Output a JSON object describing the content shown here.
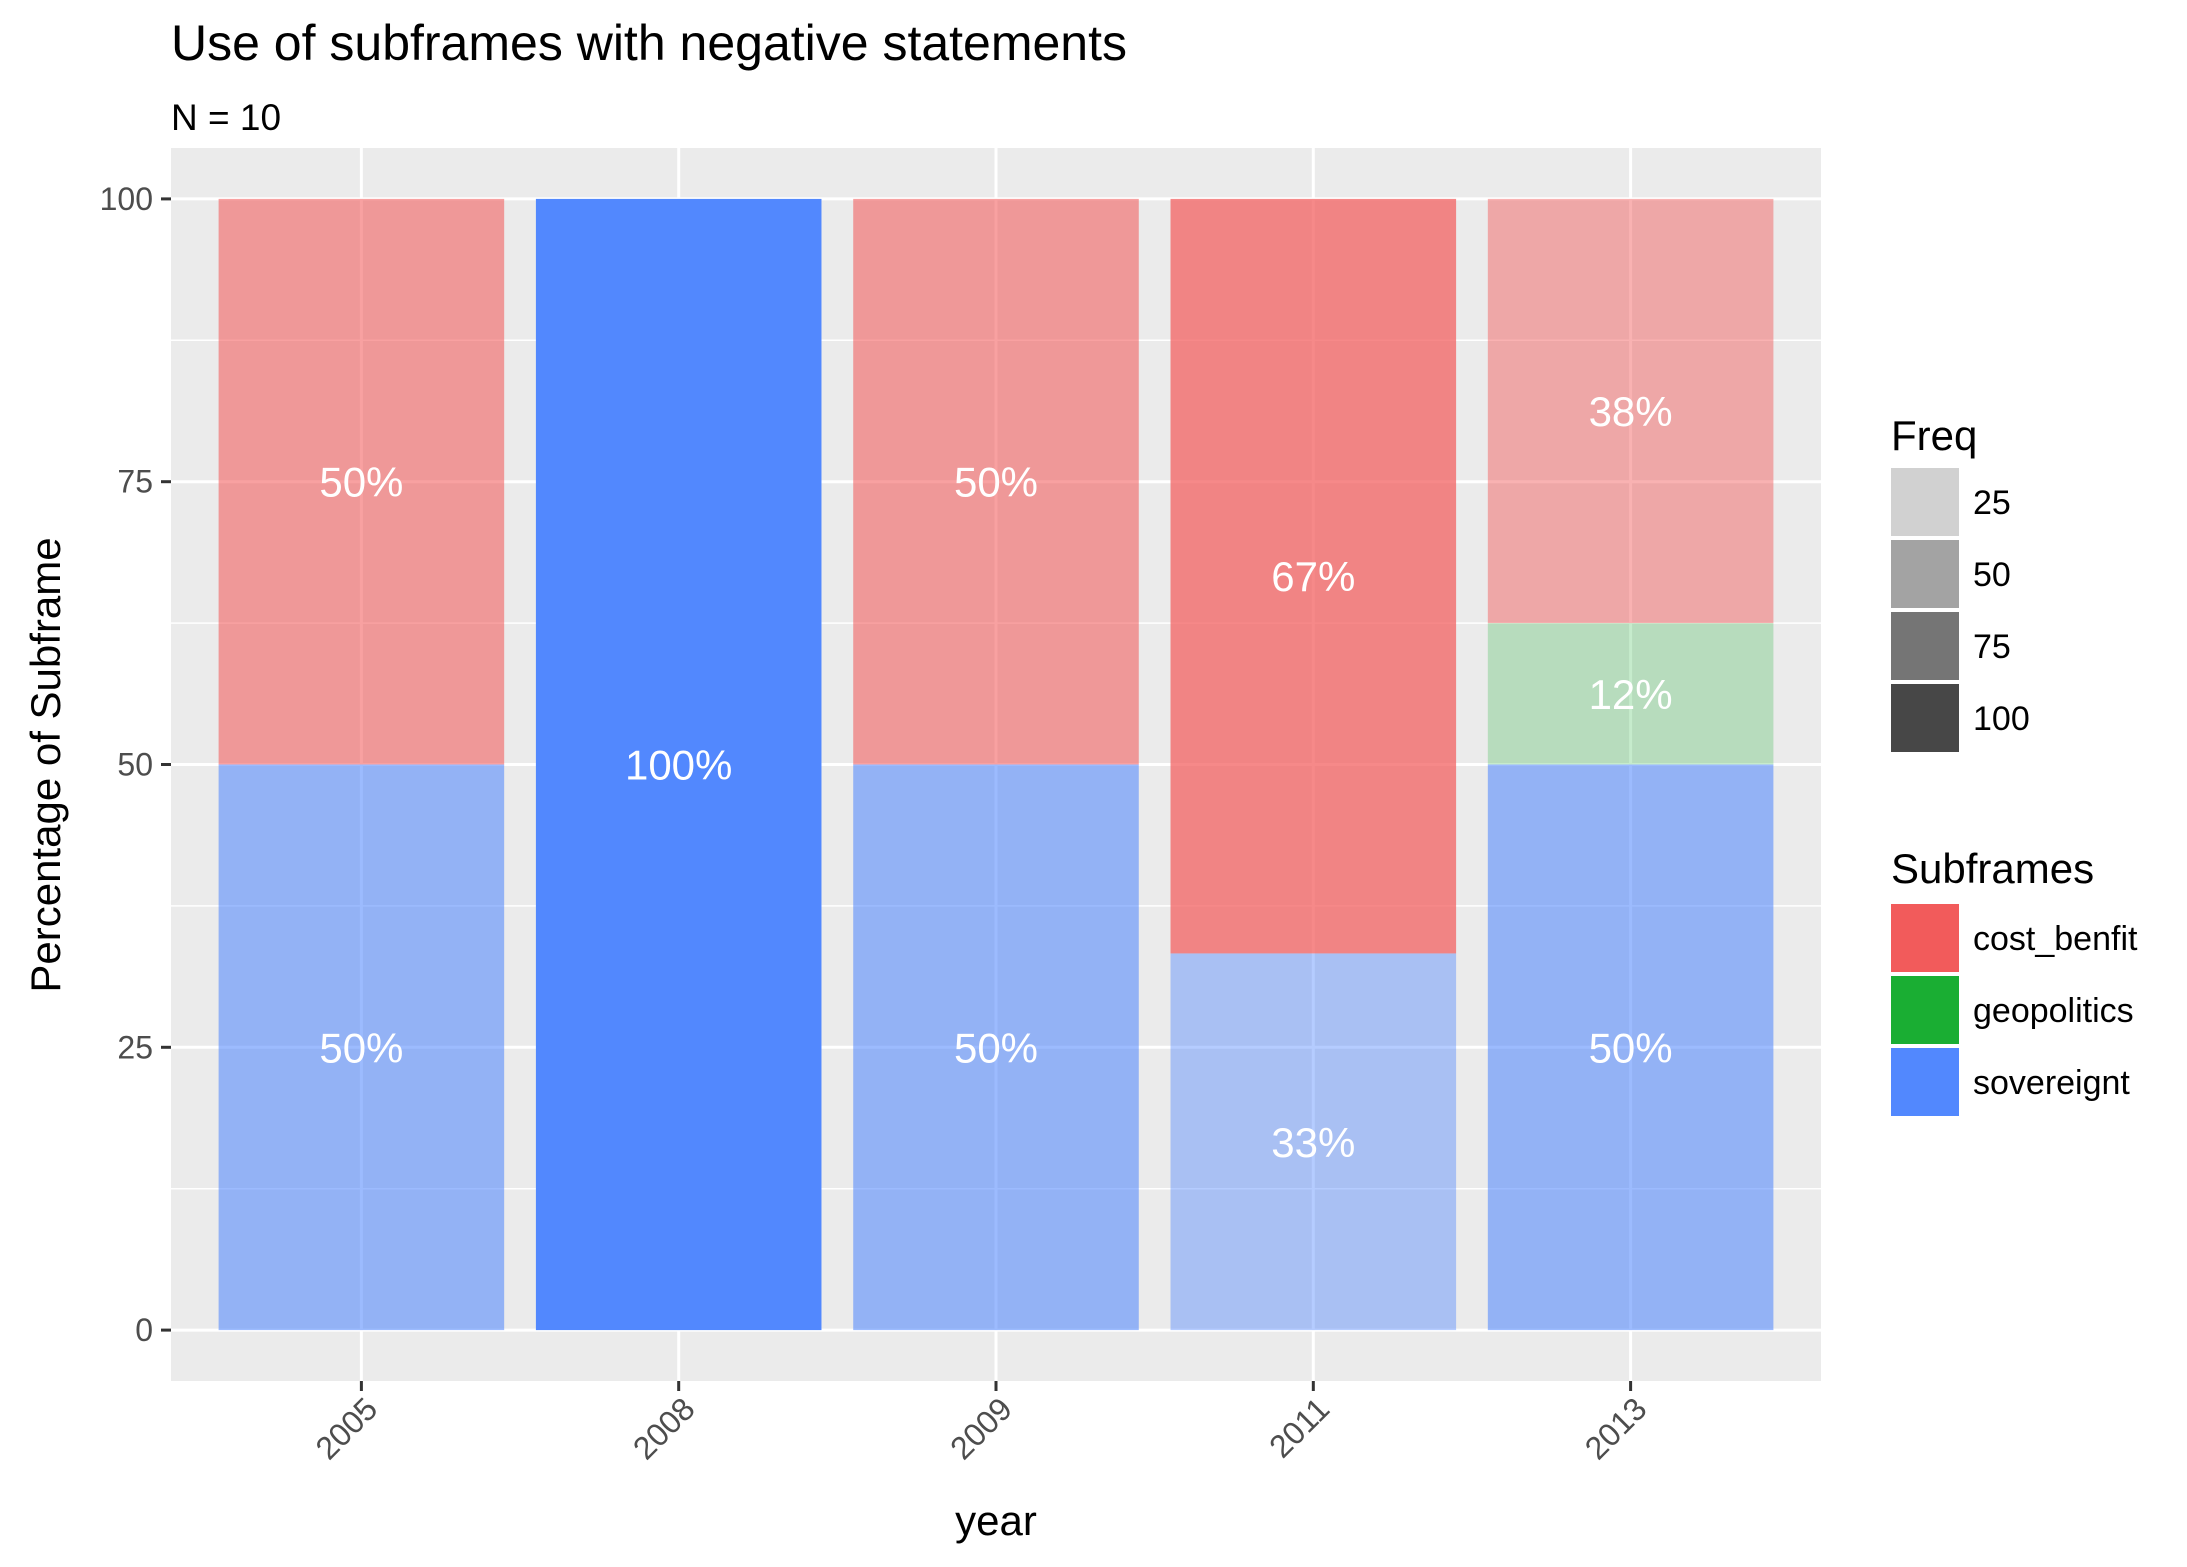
{
  "chart_data": {
    "type": "bar",
    "stacked": true,
    "title": "Use of subframes with negative statements",
    "subtitle": "N = 10",
    "xlabel": "year",
    "ylabel": "Percentage of Subframe",
    "categories": [
      "2005",
      "2008",
      "2009",
      "2011",
      "2013"
    ],
    "ylim": [
      -4.5,
      104.5
    ],
    "yticks": [
      0,
      25,
      50,
      75,
      100
    ],
    "grid": true,
    "legend_position": "right",
    "series": [
      {
        "name": "sovereignt",
        "color": "#5288fe",
        "values": [
          50,
          100,
          50,
          33.3,
          50
        ],
        "freq": [
          50,
          100,
          50,
          33,
          50
        ],
        "labels": [
          "50%",
          "100%",
          "50%",
          "33%",
          "50%"
        ]
      },
      {
        "name": "geopolitics",
        "color": "#1aae33",
        "values": [
          0,
          0,
          0,
          0,
          12.5
        ],
        "freq": [
          0,
          0,
          0,
          0,
          12
        ],
        "labels": [
          "",
          "",
          "",
          "",
          "12%"
        ]
      },
      {
        "name": "cost_benfit",
        "color": "#f25b5b",
        "values": [
          50,
          0,
          50,
          66.7,
          37.5
        ],
        "freq": [
          50,
          0,
          50,
          67,
          38
        ],
        "labels": [
          "50%",
          "",
          "50%",
          "67%",
          "38%"
        ]
      }
    ],
    "legends": {
      "freq": {
        "title": "Freq",
        "items": [
          "25",
          "50",
          "75",
          "100"
        ],
        "alphas": [
          0.25,
          0.5,
          0.75,
          1.0
        ]
      },
      "subframes": {
        "title": "Subframes",
        "items": [
          {
            "label": "cost_benfit",
            "color": "#f25b5b"
          },
          {
            "label": "geopolitics",
            "color": "#1aae33"
          },
          {
            "label": "sovereignt",
            "color": "#5288fe"
          }
        ]
      }
    }
  }
}
